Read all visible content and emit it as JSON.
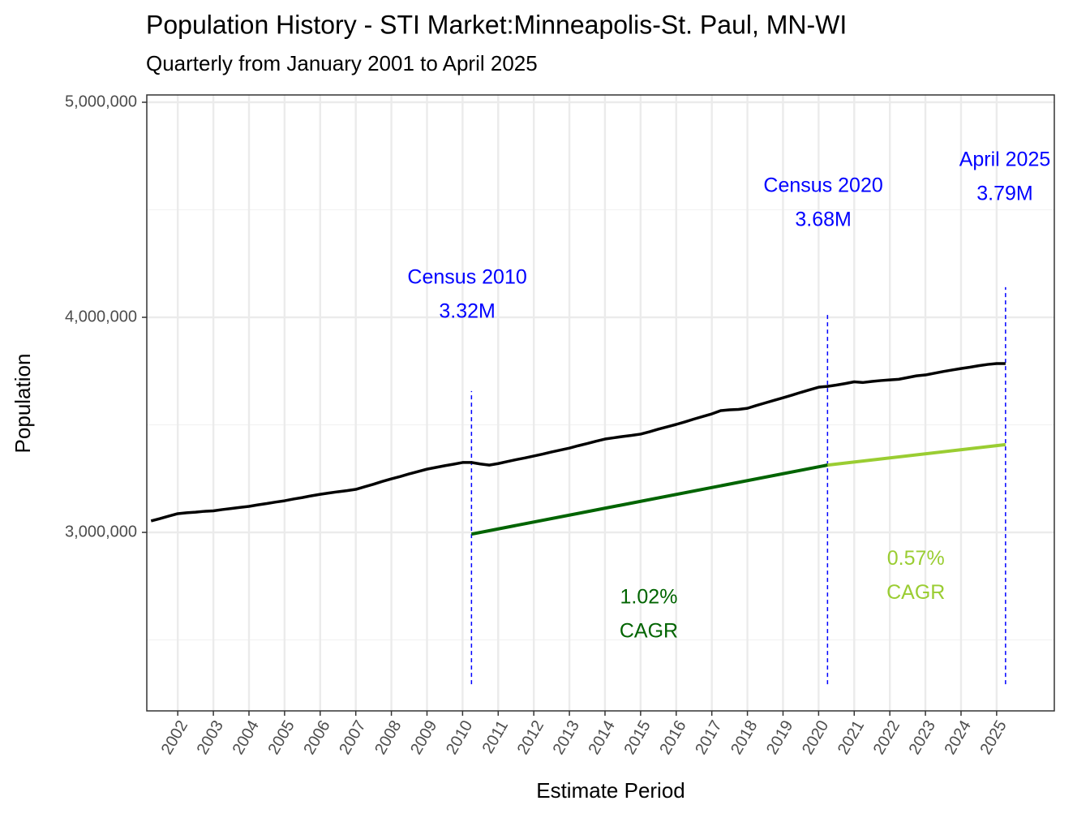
{
  "chart_data": {
    "type": "line",
    "title": "Population History - STI Market:Minneapolis-St. Paul, MN-WI",
    "subtitle": "Quarterly from January 2001 to April 2025",
    "xlabel": "Estimate Period",
    "ylabel": "Population",
    "xlim": [
      2001.13,
      2026.62
    ],
    "ylim": [
      2170000,
      5034000
    ],
    "xticks": [
      2002,
      2003,
      2004,
      2005,
      2006,
      2007,
      2008,
      2009,
      2010,
      2011,
      2012,
      2013,
      2014,
      2015,
      2016,
      2017,
      2018,
      2019,
      2020,
      2021,
      2022,
      2023,
      2024,
      2025
    ],
    "yticks": [
      {
        "value": 3000000,
        "label": "3,000,000"
      },
      {
        "value": 4000000,
        "label": "4,000,000"
      },
      {
        "value": 5000000,
        "label": "5,000,000"
      }
    ],
    "y_minor_grid": [
      2500000,
      3500000,
      4500000
    ],
    "grid": true,
    "x": [
      2001.25,
      2001.5,
      2001.75,
      2002,
      2002.25,
      2002.5,
      2002.75,
      2003,
      2003.25,
      2003.5,
      2003.75,
      2004,
      2004.25,
      2004.5,
      2004.75,
      2005,
      2005.25,
      2005.5,
      2005.75,
      2006,
      2006.25,
      2006.5,
      2006.75,
      2007,
      2007.25,
      2007.5,
      2007.75,
      2008,
      2008.25,
      2008.5,
      2008.75,
      2009,
      2009.25,
      2009.5,
      2009.75,
      2010,
      2010.25,
      2010.5,
      2010.75,
      2011,
      2011.25,
      2011.5,
      2011.75,
      2012,
      2012.25,
      2012.5,
      2012.75,
      2013,
      2013.25,
      2013.5,
      2013.75,
      2014,
      2014.25,
      2014.5,
      2014.75,
      2015,
      2015.25,
      2015.5,
      2015.75,
      2016,
      2016.25,
      2016.5,
      2016.75,
      2017,
      2017.25,
      2017.5,
      2017.75,
      2018,
      2018.25,
      2018.5,
      2018.75,
      2019,
      2019.25,
      2019.5,
      2019.75,
      2020,
      2020.25,
      2020.5,
      2020.75,
      2021,
      2021.25,
      2021.5,
      2021.75,
      2022,
      2022.25,
      2022.5,
      2022.75,
      2023,
      2023.25,
      2023.5,
      2023.75,
      2024,
      2024.25,
      2024.5,
      2024.75,
      2025,
      2025.25
    ],
    "series": [
      {
        "color": "#000000",
        "values": [
          3053000,
          3064000,
          3076000,
          3087000,
          3091000,
          3094000,
          3098000,
          3100000,
          3106000,
          3111000,
          3116000,
          3121000,
          3128000,
          3134000,
          3141000,
          3147000,
          3155000,
          3162000,
          3170000,
          3177000,
          3183000,
          3189000,
          3194000,
          3200000,
          3212000,
          3224000,
          3237000,
          3249000,
          3260000,
          3272000,
          3283000,
          3294000,
          3302000,
          3310000,
          3317000,
          3325000,
          3325000,
          3318000,
          3313000,
          3320000,
          3329000,
          3338000,
          3346000,
          3355000,
          3364000,
          3374000,
          3383000,
          3392000,
          3403000,
          3413000,
          3424000,
          3434000,
          3440000,
          3446000,
          3451000,
          3457000,
          3468000,
          3480000,
          3491000,
          3502000,
          3514000,
          3527000,
          3539000,
          3551000,
          3566000,
          3570000,
          3572000,
          3577000,
          3590000,
          3602000,
          3614000,
          3626000,
          3638000,
          3651000,
          3663000,
          3675000,
          3679000,
          3685000,
          3692000,
          3700000,
          3697000,
          3702000,
          3706000,
          3709000,
          3712000,
          3720000,
          3728000,
          3732000,
          3740000,
          3748000,
          3755000,
          3762000,
          3768000,
          3775000,
          3781000,
          3785000,
          3785000
        ]
      }
    ],
    "trend_lines": [
      {
        "color": "#006400",
        "x": [
          2010.25,
          2020.25
        ],
        "values": [
          2992000,
          3313000
        ]
      },
      {
        "color": "#9acd32",
        "x": [
          2020.25,
          2025.25
        ],
        "values": [
          3313000,
          3408000
        ]
      }
    ],
    "vlines": [
      {
        "color": "#0000ff",
        "x": 2010.25,
        "ymin": 2294000,
        "ymax": 3657000
      },
      {
        "color": "#0000ff",
        "x": 2020.25,
        "ymin": 2294000,
        "ymax": 4011000
      },
      {
        "color": "#0000ff",
        "x": 2025.25,
        "ymin": 2294000,
        "ymax": 4140000
      }
    ],
    "annotations": [
      {
        "text": [
          "Census 2010",
          "3.32M"
        ],
        "x": 2010.13,
        "y": 4181000,
        "color": "#0000ff"
      },
      {
        "text": [
          "Census 2020",
          "3.68M"
        ],
        "x": 2020.13,
        "y": 4608000,
        "color": "#0000ff"
      },
      {
        "text": [
          "April 2025",
          "3.79M"
        ],
        "x": 2025.23,
        "y": 4728000,
        "color": "#0000ff"
      },
      {
        "text": [
          "1.02%",
          "CAGR"
        ],
        "x": 2015.23,
        "y": 2694000,
        "color": "#006400"
      },
      {
        "text": [
          "0.57%",
          "CAGR"
        ],
        "x": 2022.73,
        "y": 2875000,
        "color": "#9acd32"
      }
    ]
  }
}
